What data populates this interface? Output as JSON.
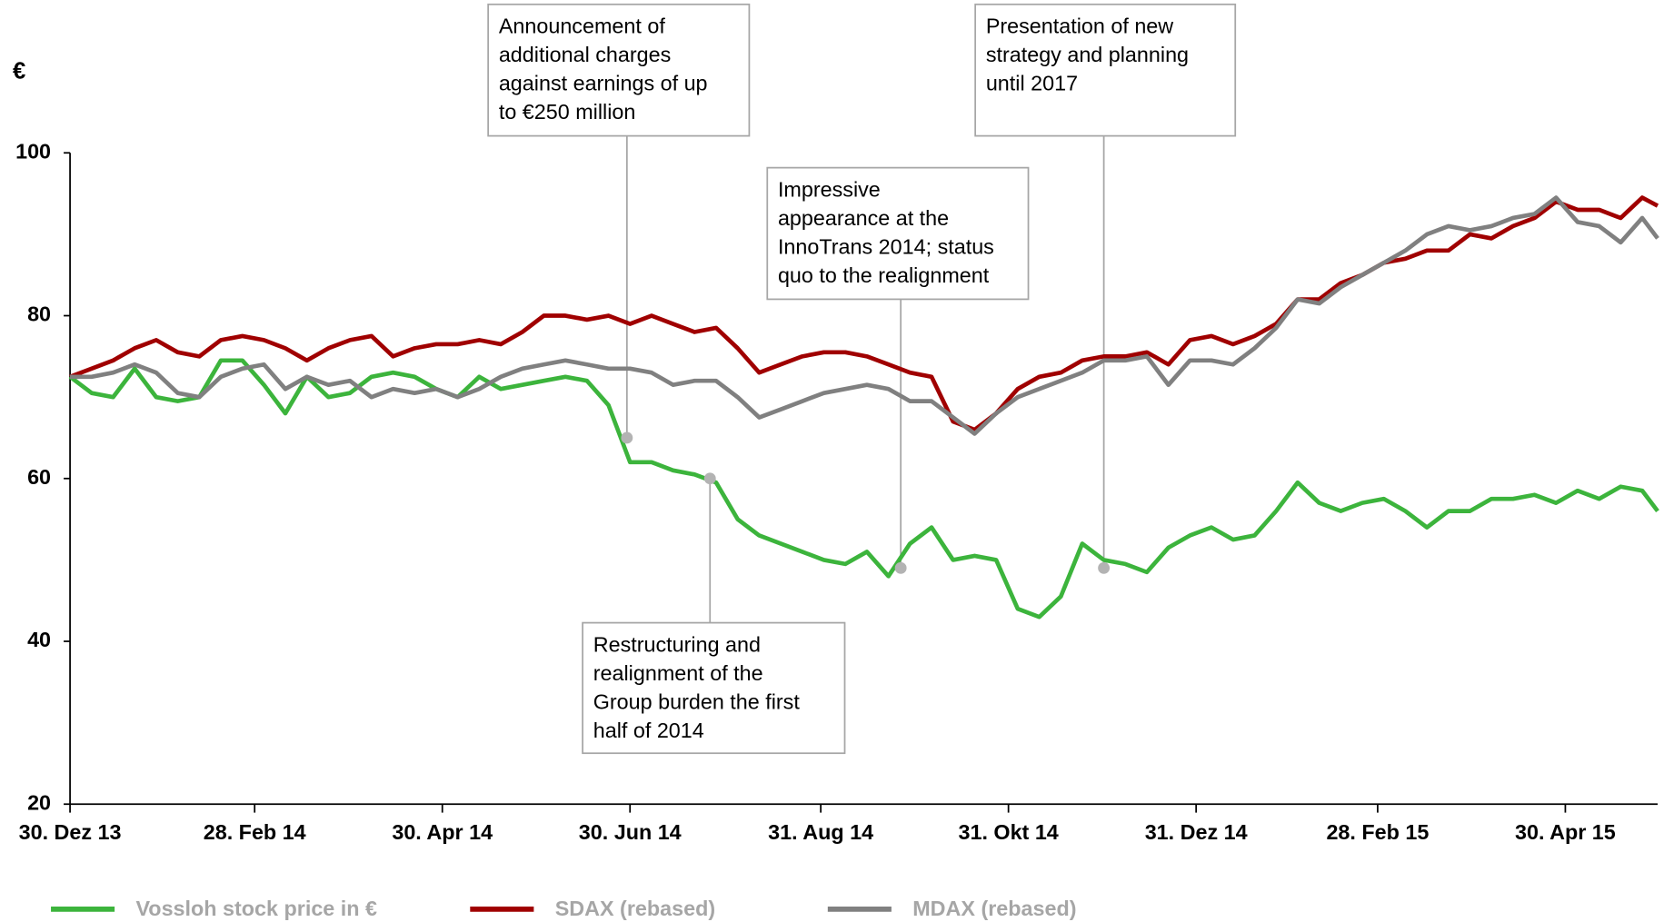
{
  "chart_data": {
    "type": "line",
    "y_label": "€",
    "x": [
      0,
      7,
      14,
      21,
      28,
      35,
      42,
      49,
      56,
      63,
      70,
      77,
      84,
      91,
      98,
      105,
      112,
      119,
      126,
      133,
      140,
      147,
      154,
      161,
      168,
      175,
      182,
      189,
      196,
      203,
      210,
      217,
      224,
      231,
      238,
      245,
      252,
      259,
      266,
      273,
      280,
      287,
      294,
      301,
      308,
      315,
      322,
      329,
      336,
      343,
      350,
      357,
      364,
      371,
      378,
      385,
      392,
      399,
      406,
      413,
      420,
      427,
      434,
      441,
      448,
      455,
      462,
      469,
      476,
      483,
      490,
      497,
      504,
      511,
      516
    ],
    "xlim": [
      0,
      516
    ],
    "xticks": [
      {
        "value": 0,
        "label": "30. Dez 13"
      },
      {
        "value": 60,
        "label": "28. Feb 14"
      },
      {
        "value": 121,
        "label": "30. Apr 14"
      },
      {
        "value": 182,
        "label": "30. Jun 14"
      },
      {
        "value": 244,
        "label": "31. Aug 14"
      },
      {
        "value": 305,
        "label": "31. Okt 14"
      },
      {
        "value": 366,
        "label": "31. Dez 14"
      },
      {
        "value": 425,
        "label": "28. Feb 15"
      },
      {
        "value": 486,
        "label": "30. Apr 15"
      }
    ],
    "ylim": [
      20,
      100
    ],
    "yticks": [
      20,
      40,
      60,
      80,
      100
    ],
    "series": [
      {
        "name": "Vossloh stock price in €",
        "color": "#3cb43c",
        "values": [
          72.5,
          70.5,
          70,
          73.5,
          70,
          69.5,
          70,
          74.5,
          74.5,
          71.5,
          68,
          72.5,
          70,
          70.5,
          72.5,
          73,
          72.5,
          71,
          70,
          72.5,
          71,
          71.5,
          72,
          72.5,
          72,
          69,
          62,
          62,
          61,
          60.5,
          59.5,
          55,
          53,
          52,
          51,
          50,
          49.5,
          51,
          48,
          52,
          54,
          50,
          50.5,
          50,
          44,
          43,
          45.5,
          52,
          50,
          49.5,
          48.5,
          51.5,
          53,
          54,
          52.5,
          53,
          56,
          59.5,
          57,
          56,
          57,
          57.5,
          56,
          54,
          56,
          56,
          57.5,
          57.5,
          58,
          57,
          58.5,
          57.5,
          59,
          58.5,
          56
        ]
      },
      {
        "name": "SDAX (rebased)",
        "color": "#a00000",
        "values": [
          72.5,
          73.5,
          74.5,
          76,
          77,
          75.5,
          75,
          77,
          77.5,
          77,
          76,
          74.5,
          76,
          77,
          77.5,
          75,
          76,
          76.5,
          76.5,
          77,
          76.5,
          78,
          80,
          80,
          79.5,
          80,
          79,
          80,
          79,
          78,
          78.5,
          76,
          73,
          74,
          75,
          75.5,
          75.5,
          75,
          74,
          73,
          72.5,
          67,
          66,
          68,
          71,
          72.5,
          73,
          74.5,
          75,
          75,
          75.5,
          74,
          77,
          77.5,
          76.5,
          77.5,
          79,
          82,
          82,
          84,
          85,
          86.5,
          87,
          88,
          88,
          90,
          89.5,
          91,
          92,
          94,
          93,
          93,
          92,
          94.5,
          93.5
        ]
      },
      {
        "name": "MDAX (rebased)",
        "color": "#808080",
        "values": [
          72.5,
          72.5,
          73,
          74,
          73,
          70.5,
          70,
          72.5,
          73.5,
          74,
          71,
          72.5,
          71.5,
          72,
          70,
          71,
          70.5,
          71,
          70,
          71,
          72.5,
          73.5,
          74,
          74.5,
          74,
          73.5,
          73.5,
          73,
          71.5,
          72,
          72,
          70,
          67.5,
          68.5,
          69.5,
          70.5,
          71,
          71.5,
          71,
          69.5,
          69.5,
          67.5,
          65.5,
          68,
          70,
          71,
          72,
          73,
          74.5,
          74.5,
          75,
          71.5,
          74.5,
          74.5,
          74,
          76,
          78.5,
          82,
          81.5,
          83.5,
          85,
          86.5,
          88,
          90,
          91,
          90.5,
          91,
          92,
          92.5,
          94.5,
          91.5,
          91,
          89,
          92,
          89.5
        ]
      }
    ],
    "annotations": [
      {
        "lines": [
          "Announcement of",
          "additional charges",
          "against earnings of up",
          "to €250 million"
        ],
        "x": 181,
        "y": 65
      },
      {
        "lines": [
          "Restructuring and",
          "realignment of the",
          "Group burden the first",
          "half of 2014"
        ],
        "x": 208,
        "y": 60
      },
      {
        "lines": [
          "Impressive",
          "appearance at the",
          "InnoTrans 2014; status",
          "quo to the realignment"
        ],
        "x": 270,
        "y": 49
      },
      {
        "lines": [
          "Presentation of new",
          "strategy and planning",
          "until 2017"
        ],
        "x": 336,
        "y": 49
      }
    ]
  }
}
